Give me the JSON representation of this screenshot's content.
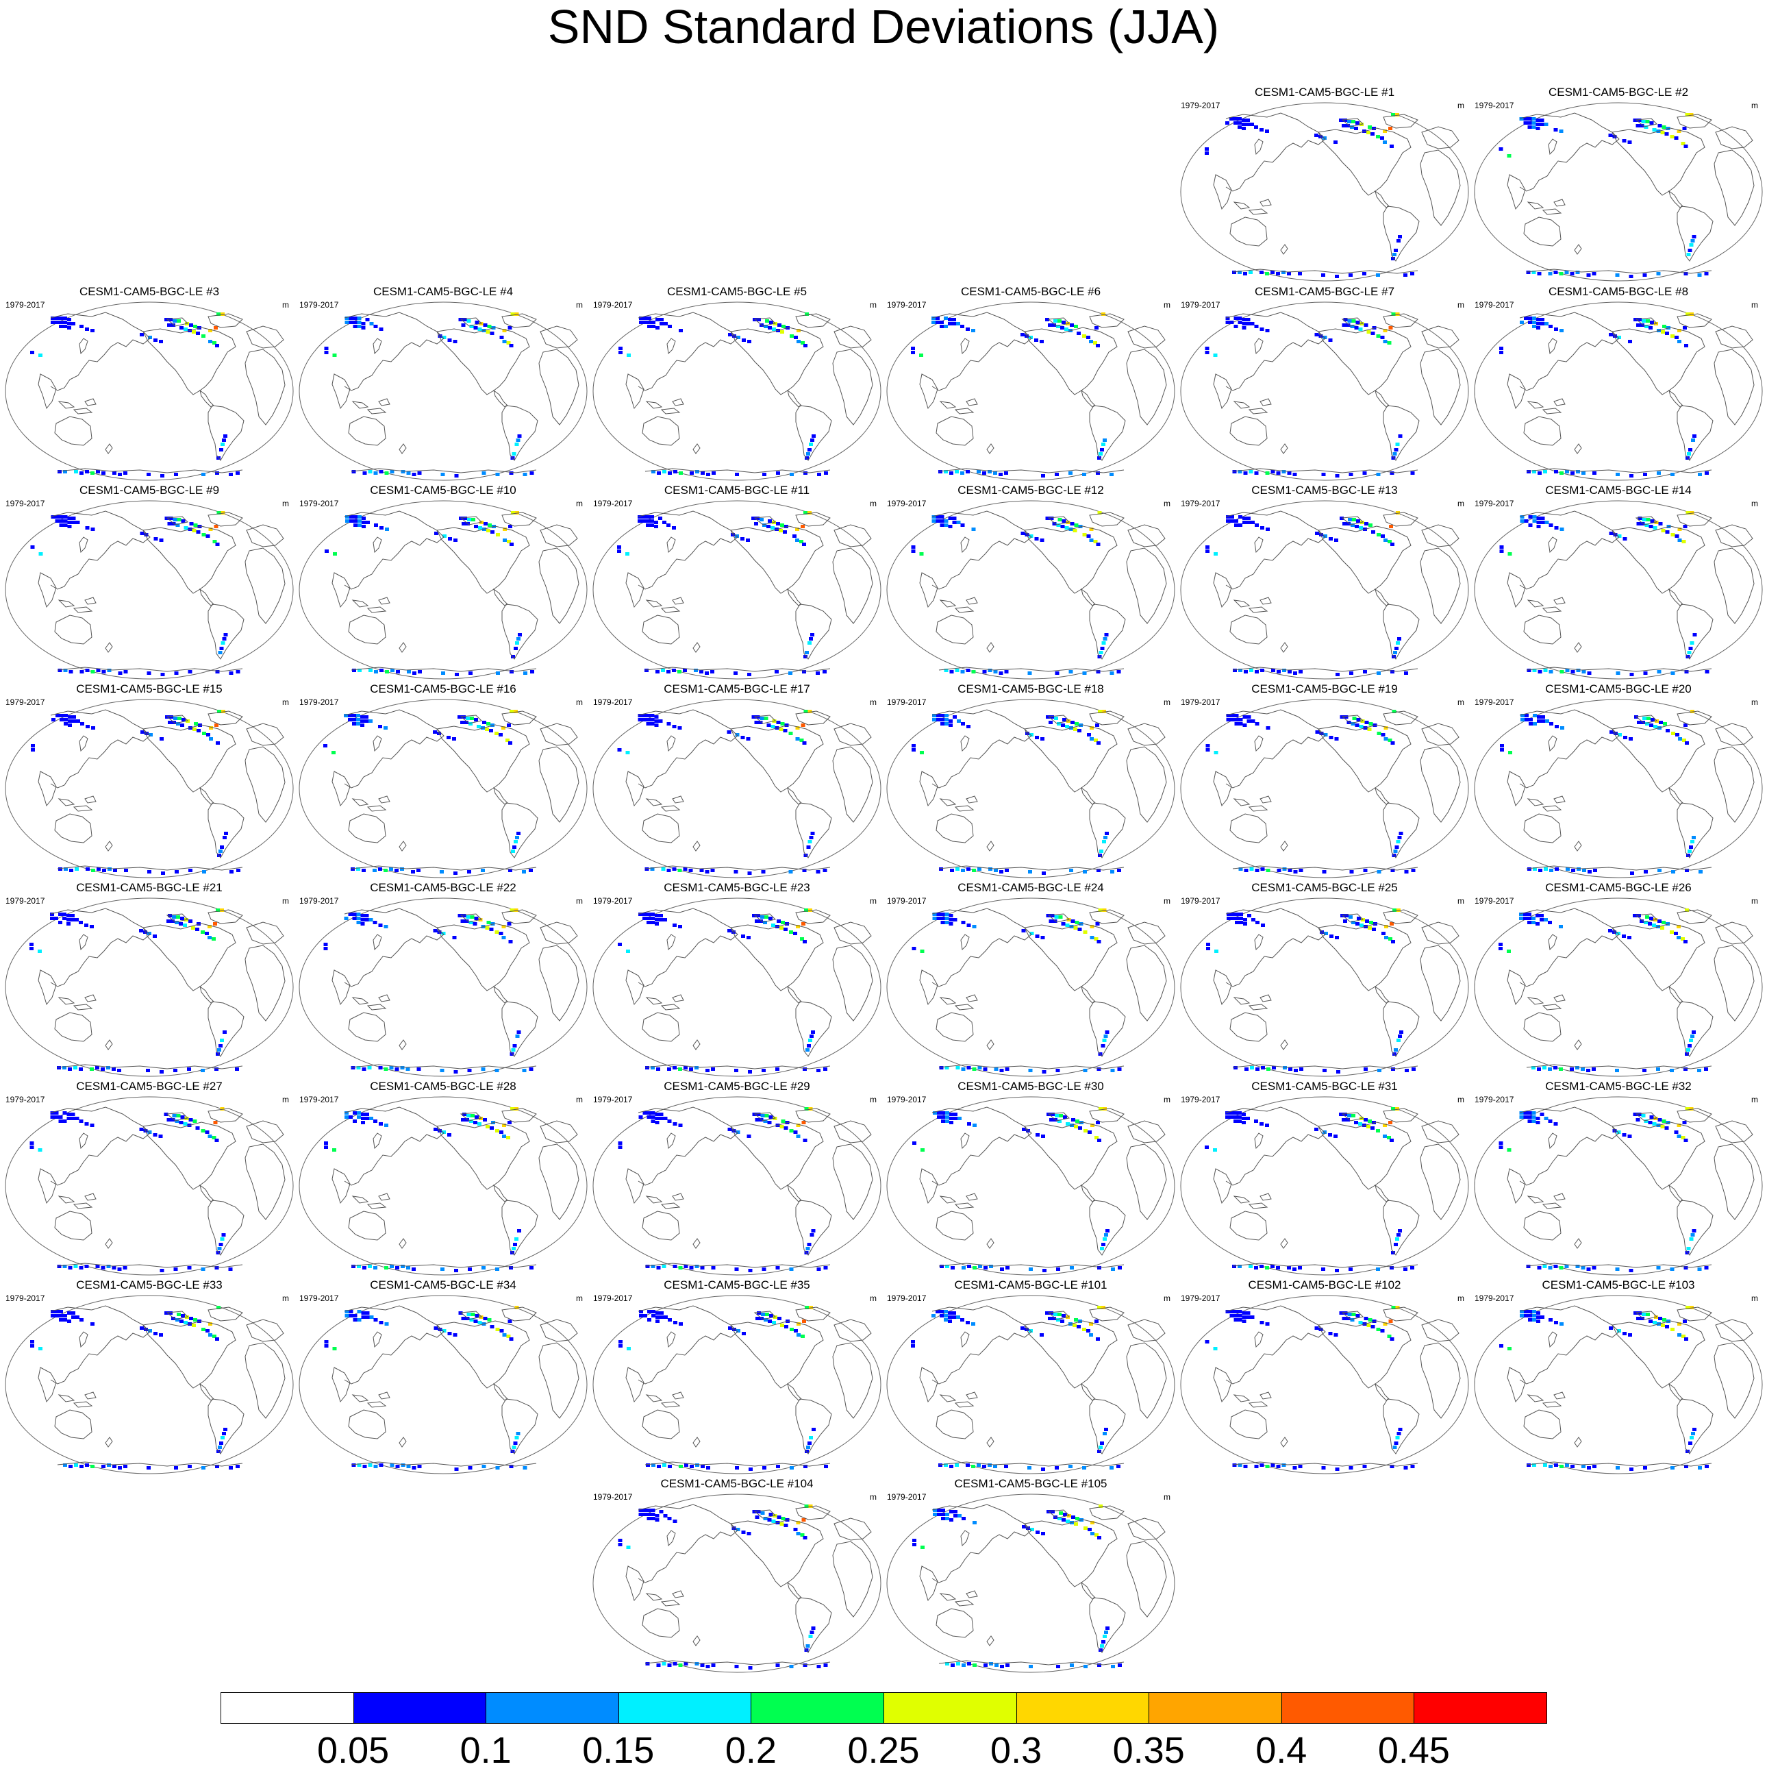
{
  "title": "SND Standard Deviations (JJA)",
  "period": "1979-2017",
  "units": "m",
  "panels": [
    "CESM1-CAM5-BGC-LE #1",
    "CESM1-CAM5-BGC-LE #2",
    "CESM1-CAM5-BGC-LE #3",
    "CESM1-CAM5-BGC-LE #4",
    "CESM1-CAM5-BGC-LE #5",
    "CESM1-CAM5-BGC-LE #6",
    "CESM1-CAM5-BGC-LE #7",
    "CESM1-CAM5-BGC-LE #8",
    "CESM1-CAM5-BGC-LE #9",
    "CESM1-CAM5-BGC-LE #10",
    "CESM1-CAM5-BGC-LE #11",
    "CESM1-CAM5-BGC-LE #12",
    "CESM1-CAM5-BGC-LE #13",
    "CESM1-CAM5-BGC-LE #14",
    "CESM1-CAM5-BGC-LE #15",
    "CESM1-CAM5-BGC-LE #16",
    "CESM1-CAM5-BGC-LE #17",
    "CESM1-CAM5-BGC-LE #18",
    "CESM1-CAM5-BGC-LE #19",
    "CESM1-CAM5-BGC-LE #20",
    "CESM1-CAM5-BGC-LE #21",
    "CESM1-CAM5-BGC-LE #22",
    "CESM1-CAM5-BGC-LE #23",
    "CESM1-CAM5-BGC-LE #24",
    "CESM1-CAM5-BGC-LE #25",
    "CESM1-CAM5-BGC-LE #26",
    "CESM1-CAM5-BGC-LE #27",
    "CESM1-CAM5-BGC-LE #28",
    "CESM1-CAM5-BGC-LE #29",
    "CESM1-CAM5-BGC-LE #30",
    "CESM1-CAM5-BGC-LE #31",
    "CESM1-CAM5-BGC-LE #32",
    "CESM1-CAM5-BGC-LE #33",
    "CESM1-CAM5-BGC-LE #34",
    "CESM1-CAM5-BGC-LE #35",
    "CESM1-CAM5-BGC-LE #101",
    "CESM1-CAM5-BGC-LE #102",
    "CESM1-CAM5-BGC-LE #103",
    "CESM1-CAM5-BGC-LE #104",
    "CESM1-CAM5-BGC-LE #105"
  ],
  "colorbar": {
    "labels": [
      "0.05",
      "0.1",
      "0.15",
      "0.2",
      "0.25",
      "0.3",
      "0.35",
      "0.4",
      "0.45"
    ],
    "colors": [
      "#ffffff",
      "#0000ff",
      "#008cff",
      "#00f0ff",
      "#00ff50",
      "#e0ff00",
      "#ffd700",
      "#ffa500",
      "#ff5a00",
      "#ff0000"
    ]
  }
}
